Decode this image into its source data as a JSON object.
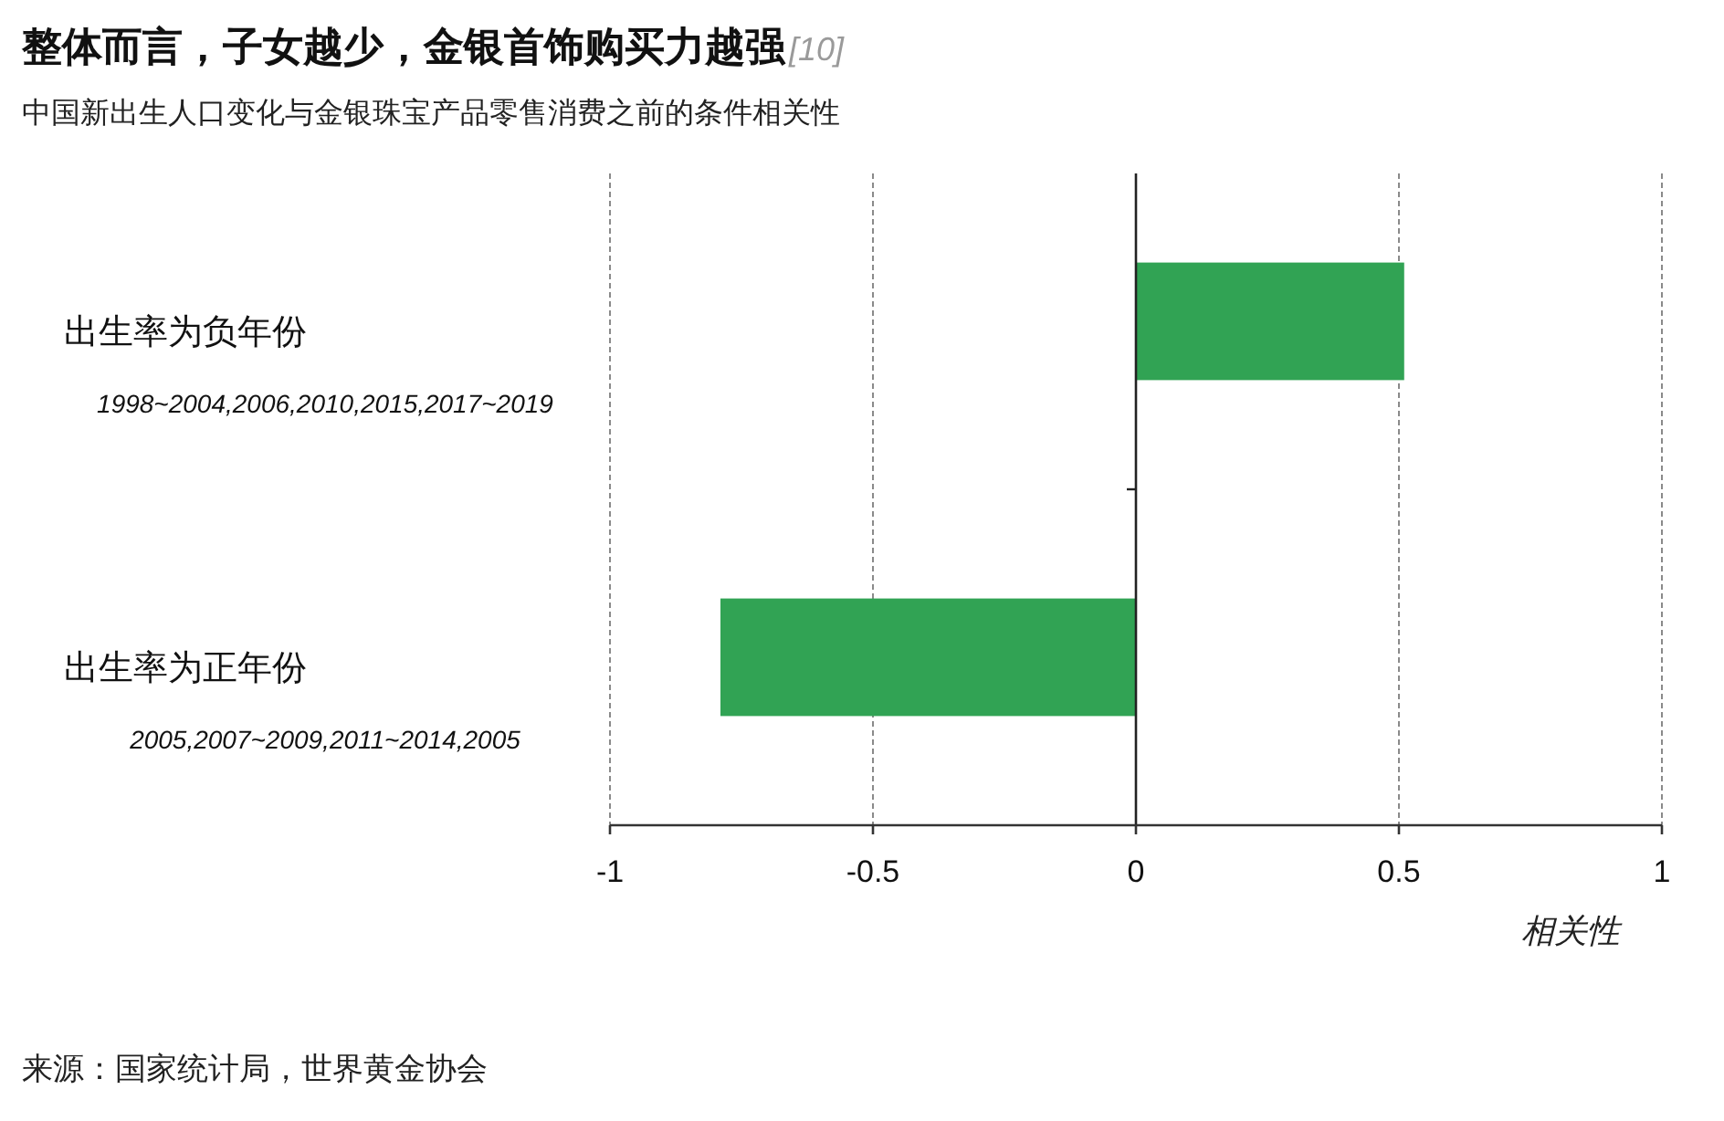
{
  "chart_data": {
    "type": "bar",
    "orientation": "horizontal",
    "title": "整体而言，子女越少，金银首饰购买力越强[10]",
    "subtitle": "中国新出生人口变化与金银珠宝产品零售消费之前的条件相关性",
    "xlabel": "相关性",
    "categories": [
      "出生率为负年份\n1998~2004,2006,2010,2015,2017~2019",
      "出生率为正年份\n2005,2007~2009,2011~2014,2005"
    ],
    "values": [
      0.51,
      -0.79
    ],
    "color": "#31a354",
    "xlim": [
      -1,
      1
    ],
    "xticks": [
      -1,
      -0.5,
      0,
      0.5,
      1
    ],
    "grid": "x",
    "annotations": [
      "来源：国家统计局，世界黄金协会"
    ]
  }
}
